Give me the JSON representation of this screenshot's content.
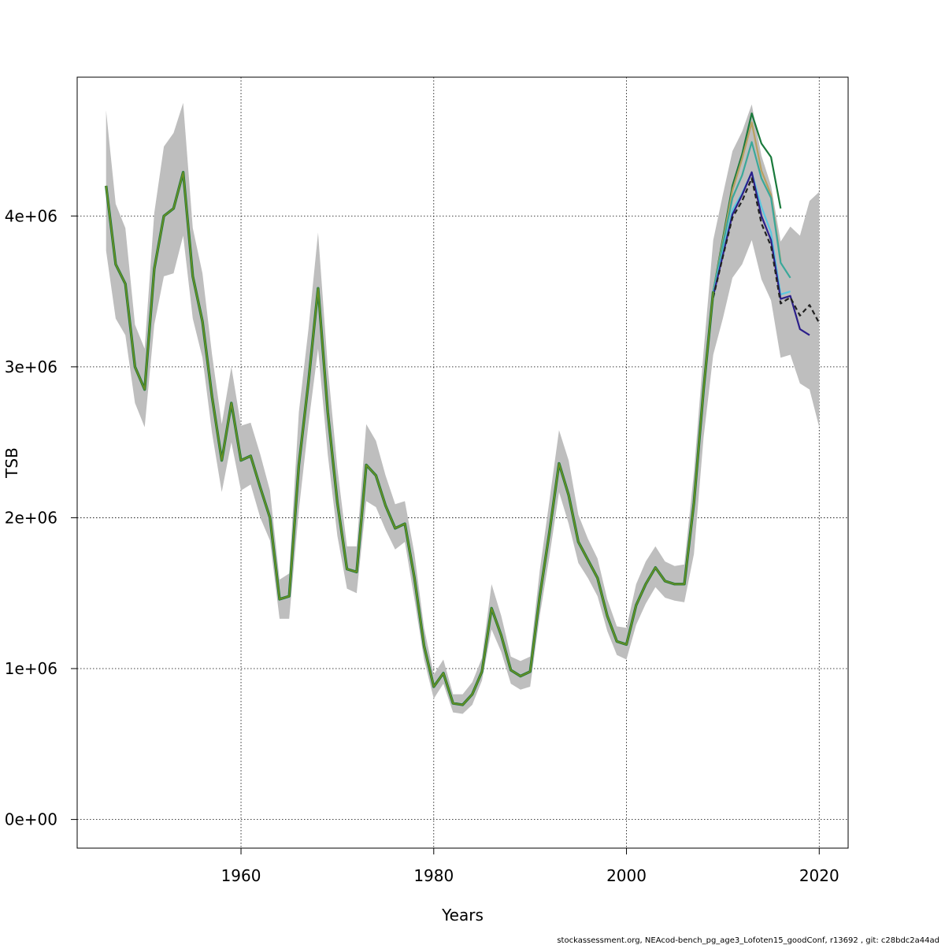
{
  "footer_text": "stockassessment.org, NEAcod-bench_pg_age3_Lofoten15_goodConf, r13692 , git: c28bdc2a44ad",
  "chart_data": {
    "type": "line",
    "title": "",
    "xlabel": "Years",
    "ylabel": "TSB",
    "xlim": [
      1943,
      2023
    ],
    "ylim": [
      -190000,
      4920000
    ],
    "grid": true,
    "grid_style": "dotted",
    "legend": "none",
    "x_ticks": [
      1960,
      1980,
      2000,
      2020
    ],
    "x_tick_labels": [
      "1960",
      "1980",
      "2000",
      "2020"
    ],
    "y_ticks": [
      0,
      1000000,
      2000000,
      3000000,
      4000000
    ],
    "y_tick_labels": [
      "0e+00",
      "1e+06",
      "2e+06",
      "3e+06",
      "4e+06"
    ],
    "main_series": {
      "color": "#6b8e23",
      "x": [
        1946,
        1947,
        1948,
        1949,
        1950,
        1951,
        1952,
        1953,
        1954,
        1955,
        1956,
        1957,
        1958,
        1959,
        1960,
        1961,
        1962,
        1963,
        1964,
        1965,
        1966,
        1967,
        1968,
        1969,
        1970,
        1971,
        1972,
        1973,
        1974,
        1975,
        1976,
        1977,
        1978,
        1979,
        1980,
        1981,
        1982,
        1983,
        1984,
        1985,
        1986,
        1987,
        1988,
        1989,
        1990,
        1991,
        1992,
        1993,
        1994,
        1995,
        1996,
        1997,
        1998,
        1999,
        2000,
        2001,
        2002,
        2003,
        2004,
        2005,
        2006,
        2007,
        2008,
        2009
      ],
      "y": [
        4200000,
        3680000,
        3550000,
        3000000,
        2850000,
        3650000,
        4000000,
        4050000,
        4290000,
        3600000,
        3300000,
        2800000,
        2380000,
        2760000,
        2380000,
        2410000,
        2200000,
        2000000,
        1460000,
        1480000,
        2350000,
        2900000,
        3520000,
        2700000,
        2100000,
        1660000,
        1640000,
        2350000,
        2280000,
        2080000,
        1930000,
        1960000,
        1600000,
        1150000,
        880000,
        970000,
        770000,
        760000,
        830000,
        980000,
        1400000,
        1220000,
        990000,
        950000,
        980000,
        1480000,
        1900000,
        2360000,
        2150000,
        1840000,
        1720000,
        1600000,
        1350000,
        1180000,
        1160000,
        1420000,
        1560000,
        1670000,
        1580000,
        1560000,
        1560000,
        2100000,
        2850000,
        3500000
      ]
    },
    "confidence_band": {
      "color": "#bebebe",
      "x": [
        1946,
        1947,
        1948,
        1949,
        1950,
        1951,
        1952,
        1953,
        1954,
        1955,
        1956,
        1957,
        1958,
        1959,
        1960,
        1961,
        1962,
        1963,
        1964,
        1965,
        1966,
        1967,
        1968,
        1969,
        1970,
        1971,
        1972,
        1973,
        1974,
        1975,
        1976,
        1977,
        1978,
        1979,
        1980,
        1981,
        1982,
        1983,
        1984,
        1985,
        1986,
        1987,
        1988,
        1989,
        1990,
        1991,
        1992,
        1993,
        1994,
        1995,
        1996,
        1997,
        1998,
        1999,
        2000,
        2001,
        2002,
        2003,
        2004,
        2005,
        2006,
        2007,
        2008,
        2009,
        2010,
        2011,
        2012,
        2013,
        2014,
        2015,
        2016,
        2017,
        2018,
        2019,
        2020
      ],
      "upper": [
        4700000,
        4080000,
        3920000,
        3280000,
        3120000,
        4020000,
        4460000,
        4550000,
        4750000,
        3920000,
        3620000,
        3080000,
        2620000,
        3000000,
        2610000,
        2630000,
        2420000,
        2180000,
        1590000,
        1630000,
        2700000,
        3250000,
        3890000,
        3000000,
        2330000,
        1810000,
        1810000,
        2620000,
        2510000,
        2280000,
        2090000,
        2110000,
        1760000,
        1270000,
        960000,
        1060000,
        830000,
        830000,
        910000,
        1070000,
        1560000,
        1350000,
        1080000,
        1050000,
        1080000,
        1650000,
        2110000,
        2580000,
        2380000,
        2020000,
        1860000,
        1730000,
        1460000,
        1280000,
        1270000,
        1560000,
        1710000,
        1810000,
        1710000,
        1680000,
        1690000,
        2300000,
        3100000,
        3840000,
        4140000,
        4430000,
        4560000,
        4740000,
        4400000,
        4200000,
        3830000,
        3930000,
        3870000,
        4100000,
        4160000
      ],
      "lower": [
        3770000,
        3320000,
        3210000,
        2760000,
        2600000,
        3280000,
        3600000,
        3620000,
        3870000,
        3320000,
        3060000,
        2560000,
        2170000,
        2500000,
        2180000,
        2220000,
        2000000,
        1850000,
        1330000,
        1330000,
        2050000,
        2620000,
        3120000,
        2420000,
        1880000,
        1530000,
        1500000,
        2110000,
        2070000,
        1920000,
        1790000,
        1840000,
        1460000,
        1060000,
        800000,
        900000,
        710000,
        700000,
        760000,
        920000,
        1260000,
        1110000,
        900000,
        860000,
        880000,
        1350000,
        1740000,
        2170000,
        1960000,
        1700000,
        1600000,
        1480000,
        1250000,
        1090000,
        1060000,
        1290000,
        1430000,
        1540000,
        1470000,
        1450000,
        1440000,
        1760000,
        2530000,
        3080000,
        3320000,
        3590000,
        3680000,
        3840000,
        3580000,
        3440000,
        3060000,
        3080000,
        2890000,
        2850000,
        2600000
      ]
    },
    "retro_series": [
      {
        "color": "#1a7a3c",
        "x": [
          2009,
          2010,
          2011,
          2012,
          2013,
          2014,
          2015,
          2016
        ],
        "y": [
          3500000,
          3850000,
          4200000,
          4410000,
          4680000,
          4480000,
          4390000,
          4050000
        ]
      },
      {
        "color": "#b8a060",
        "x": [
          2009,
          2010,
          2011,
          2012,
          2013,
          2014,
          2015,
          2016
        ],
        "y": [
          3500000,
          3830000,
          4170000,
          4380000,
          4620000,
          4300000,
          4140000,
          3700000
        ]
      },
      {
        "color": "#3aa89a",
        "x": [
          2009,
          2010,
          2011,
          2012,
          2013,
          2014,
          2015,
          2016,
          2017
        ],
        "y": [
          3500000,
          3810000,
          4120000,
          4270000,
          4490000,
          4250000,
          4120000,
          3690000,
          3590000
        ]
      },
      {
        "color": "#5bc8e0",
        "x": [
          2009,
          2010,
          2011,
          2012,
          2013,
          2014,
          2015,
          2016,
          2017
        ],
        "y": [
          3480000,
          3760000,
          4040000,
          4150000,
          4290000,
          4060000,
          3890000,
          3480000,
          3500000
        ]
      },
      {
        "color": "#2c1f8a",
        "x": [
          2009,
          2010,
          2011,
          2012,
          2013,
          2014,
          2015,
          2016,
          2017,
          2018,
          2019
        ],
        "y": [
          3470000,
          3740000,
          4010000,
          4140000,
          4290000,
          4000000,
          3840000,
          3450000,
          3470000,
          3250000,
          3210000
        ]
      },
      {
        "color": "#222222",
        "dashed": true,
        "x": [
          2009,
          2010,
          2011,
          2012,
          2013,
          2014,
          2015,
          2016,
          2017,
          2018,
          2019,
          2020
        ],
        "y": [
          3460000,
          3730000,
          3990000,
          4100000,
          4250000,
          3950000,
          3800000,
          3420000,
          3460000,
          3340000,
          3410000,
          3290000
        ]
      }
    ]
  }
}
